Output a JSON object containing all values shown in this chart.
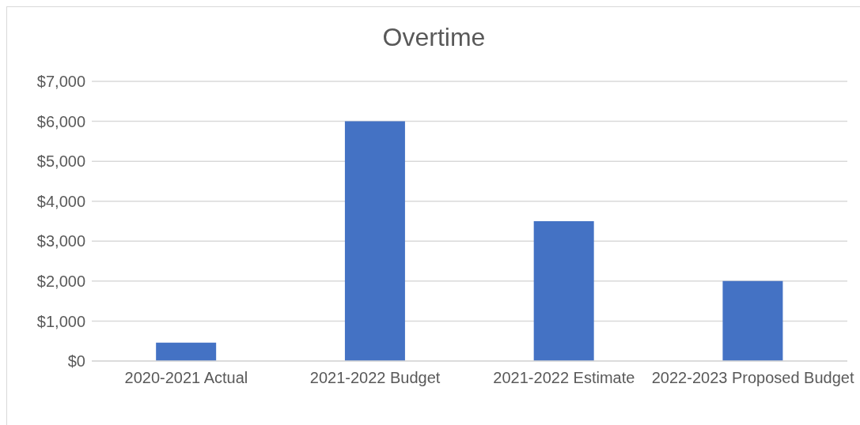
{
  "chart_data": {
    "type": "bar",
    "title": "Overtime",
    "categories": [
      "2020-2021 Actual",
      "2021-2022 Budget",
      "2021-2022 Estimate",
      "2022-2023 Proposed Budget"
    ],
    "values": [
      460,
      6000,
      3500,
      2000
    ],
    "color": "#4472c4",
    "ylim": [
      0,
      7000
    ],
    "yticks": [
      {
        "value": 0,
        "label": "$0"
      },
      {
        "value": 1000,
        "label": "$1,000"
      },
      {
        "value": 2000,
        "label": "$2,000"
      },
      {
        "value": 3000,
        "label": "$3,000"
      },
      {
        "value": 4000,
        "label": "$4,000"
      },
      {
        "value": 5000,
        "label": "$5,000"
      },
      {
        "value": 6000,
        "label": "$6,000"
      },
      {
        "value": 7000,
        "label": "$7,000"
      }
    ],
    "grid": "y"
  }
}
